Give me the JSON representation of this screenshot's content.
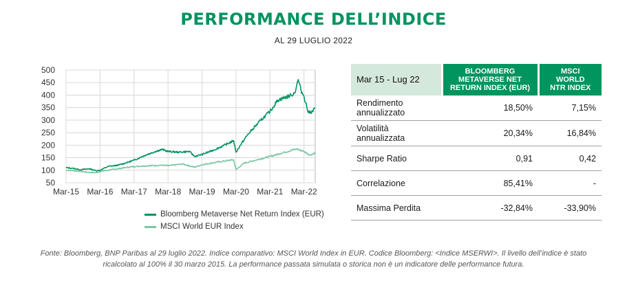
{
  "header": {
    "title": "PERFORMANCE DELL’INDICE",
    "subtitle": "AL 29 LUGLIO 2022"
  },
  "chart_data": {
    "type": "line",
    "ylim": [
      50,
      500
    ],
    "yticks": [
      50,
      100,
      150,
      200,
      250,
      300,
      350,
      400,
      450,
      500
    ],
    "x_tick_labels": [
      "Mar-15",
      "Mar-16",
      "Mar-17",
      "Mar-18",
      "Mar-19",
      "Mar-20",
      "Mar-21",
      "Mar-22"
    ],
    "x_tick_years": [
      2015.17,
      2016.17,
      2017.17,
      2018.17,
      2019.17,
      2020.17,
      2021.17,
      2022.17
    ],
    "grid": true,
    "legend_position": "bottom",
    "series": [
      {
        "name": "Bloomberg Metaverse Net Return Index (EUR)",
        "color": "#00945f",
        "points": [
          [
            2015.17,
            110
          ],
          [
            2015.35,
            108
          ],
          [
            2015.6,
            102
          ],
          [
            2015.85,
            106
          ],
          [
            2016.05,
            98
          ],
          [
            2016.17,
            100
          ],
          [
            2016.4,
            115
          ],
          [
            2016.7,
            120
          ],
          [
            2016.9,
            128
          ],
          [
            2017.17,
            140
          ],
          [
            2017.5,
            160
          ],
          [
            2017.8,
            175
          ],
          [
            2018.0,
            183
          ],
          [
            2018.17,
            175
          ],
          [
            2018.5,
            172
          ],
          [
            2018.8,
            175
          ],
          [
            2018.95,
            155
          ],
          [
            2019.17,
            163
          ],
          [
            2019.5,
            180
          ],
          [
            2019.8,
            198
          ],
          [
            2020.1,
            218
          ],
          [
            2020.17,
            172
          ],
          [
            2020.3,
            200
          ],
          [
            2020.5,
            240
          ],
          [
            2020.7,
            270
          ],
          [
            2020.9,
            300
          ],
          [
            2021.17,
            335
          ],
          [
            2021.4,
            380
          ],
          [
            2021.6,
            390
          ],
          [
            2021.8,
            400
          ],
          [
            2021.9,
            410
          ],
          [
            2022.0,
            462
          ],
          [
            2022.08,
            420
          ],
          [
            2022.17,
            395
          ],
          [
            2022.3,
            330
          ],
          [
            2022.42,
            335
          ],
          [
            2022.5,
            350
          ]
        ]
      },
      {
        "name": "MSCI World EUR Index",
        "color": "#7ac6a2",
        "points": [
          [
            2015.17,
            100
          ],
          [
            2015.5,
            97
          ],
          [
            2015.8,
            92
          ],
          [
            2016.05,
            90
          ],
          [
            2016.17,
            95
          ],
          [
            2016.5,
            102
          ],
          [
            2016.9,
            110
          ],
          [
            2017.17,
            115
          ],
          [
            2017.6,
            118
          ],
          [
            2018.0,
            120
          ],
          [
            2018.17,
            118
          ],
          [
            2018.6,
            125
          ],
          [
            2018.95,
            112
          ],
          [
            2019.17,
            122
          ],
          [
            2019.6,
            132
          ],
          [
            2020.1,
            142
          ],
          [
            2020.17,
            102
          ],
          [
            2020.4,
            128
          ],
          [
            2020.8,
            142
          ],
          [
            2021.17,
            155
          ],
          [
            2021.6,
            172
          ],
          [
            2021.95,
            185
          ],
          [
            2022.17,
            175
          ],
          [
            2022.35,
            160
          ],
          [
            2022.5,
            170
          ]
        ]
      }
    ]
  },
  "table": {
    "header_period": "Mar 15 - Lug 22",
    "col1_lines": [
      "BLOOMBERG",
      "METAVERSE NET",
      "RETURN INDEX (EUR)"
    ],
    "col2_lines": [
      "MSCI",
      "WORLD",
      "NTR INDEX"
    ],
    "rows": [
      {
        "label_lines": [
          "Rendimento",
          "annualizzato"
        ],
        "v1": "18,50%",
        "v2": "7,15%"
      },
      {
        "label_lines": [
          "Volatilità",
          "annualizzata"
        ],
        "v1": "20,34%",
        "v2": "16,84%"
      },
      {
        "label_lines": [
          "Sharpe Ratio"
        ],
        "v1": "0,91",
        "v2": "0,42"
      },
      {
        "label_lines": [
          "Correlazione"
        ],
        "v1": "85,41%",
        "v2": "-"
      },
      {
        "label_lines": [
          "Massima Perdita"
        ],
        "v1": "-32,84%",
        "v2": "-33,90%"
      }
    ]
  },
  "footer": {
    "line1": "Fonte: Bloomberg, BNP Paribas  al 29 luglio 2022. Indice comparativo:  MSCI World Index in EUR. Codice Bloomberg: <Indice MSERWI>. Il livello dell’indice è stato",
    "line2": "ricalcolato al 100% il 30 marzo 2015. La performance passata simulata o storica non è un indicatore delle performance futura."
  }
}
